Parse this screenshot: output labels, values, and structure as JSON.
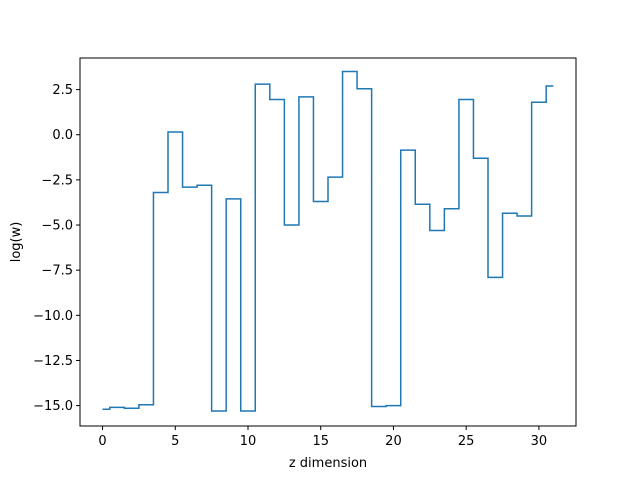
{
  "chart_data": {
    "type": "line",
    "drawstyle": "steps-mid",
    "title": "",
    "xlabel": "z dimension",
    "ylabel": "log(w)",
    "xlim": [
      -1.55,
      32.55
    ],
    "ylim": [
      -16.13,
      4.25
    ],
    "xticks": [
      0,
      5,
      10,
      15,
      20,
      25,
      30
    ],
    "xtick_labels": [
      "0",
      "5",
      "10",
      "15",
      "20",
      "25",
      "30"
    ],
    "yticks": [
      2.5,
      0.0,
      -2.5,
      -5.0,
      -7.5,
      -10.0,
      -12.5,
      -15.0
    ],
    "ytick_labels": [
      "2.5",
      "0.0",
      "−2.5",
      "−5.0",
      "−7.5",
      "−10.0",
      "−12.5",
      "−15.0"
    ],
    "grid": false,
    "line_color": "#1f77b4",
    "series": [
      {
        "x": [
          0,
          1,
          2,
          3,
          4,
          5,
          6,
          7,
          8,
          9,
          10,
          11,
          12,
          13,
          14,
          15,
          16,
          17,
          18,
          19,
          20,
          21,
          22,
          23,
          24,
          25,
          26,
          27,
          28,
          29,
          30,
          31
        ],
        "values": [
          -15.2,
          -15.1,
          -15.15,
          -14.95,
          -3.2,
          0.15,
          -2.9,
          -2.8,
          -15.3,
          -3.55,
          -15.3,
          2.8,
          1.95,
          -5.0,
          2.1,
          -3.7,
          -2.35,
          3.5,
          2.55,
          -15.05,
          -15.0,
          -0.85,
          -3.85,
          -5.3,
          -4.1,
          1.95,
          -1.3,
          -7.9,
          -4.35,
          -4.5,
          1.8,
          2.7
        ]
      }
    ]
  }
}
